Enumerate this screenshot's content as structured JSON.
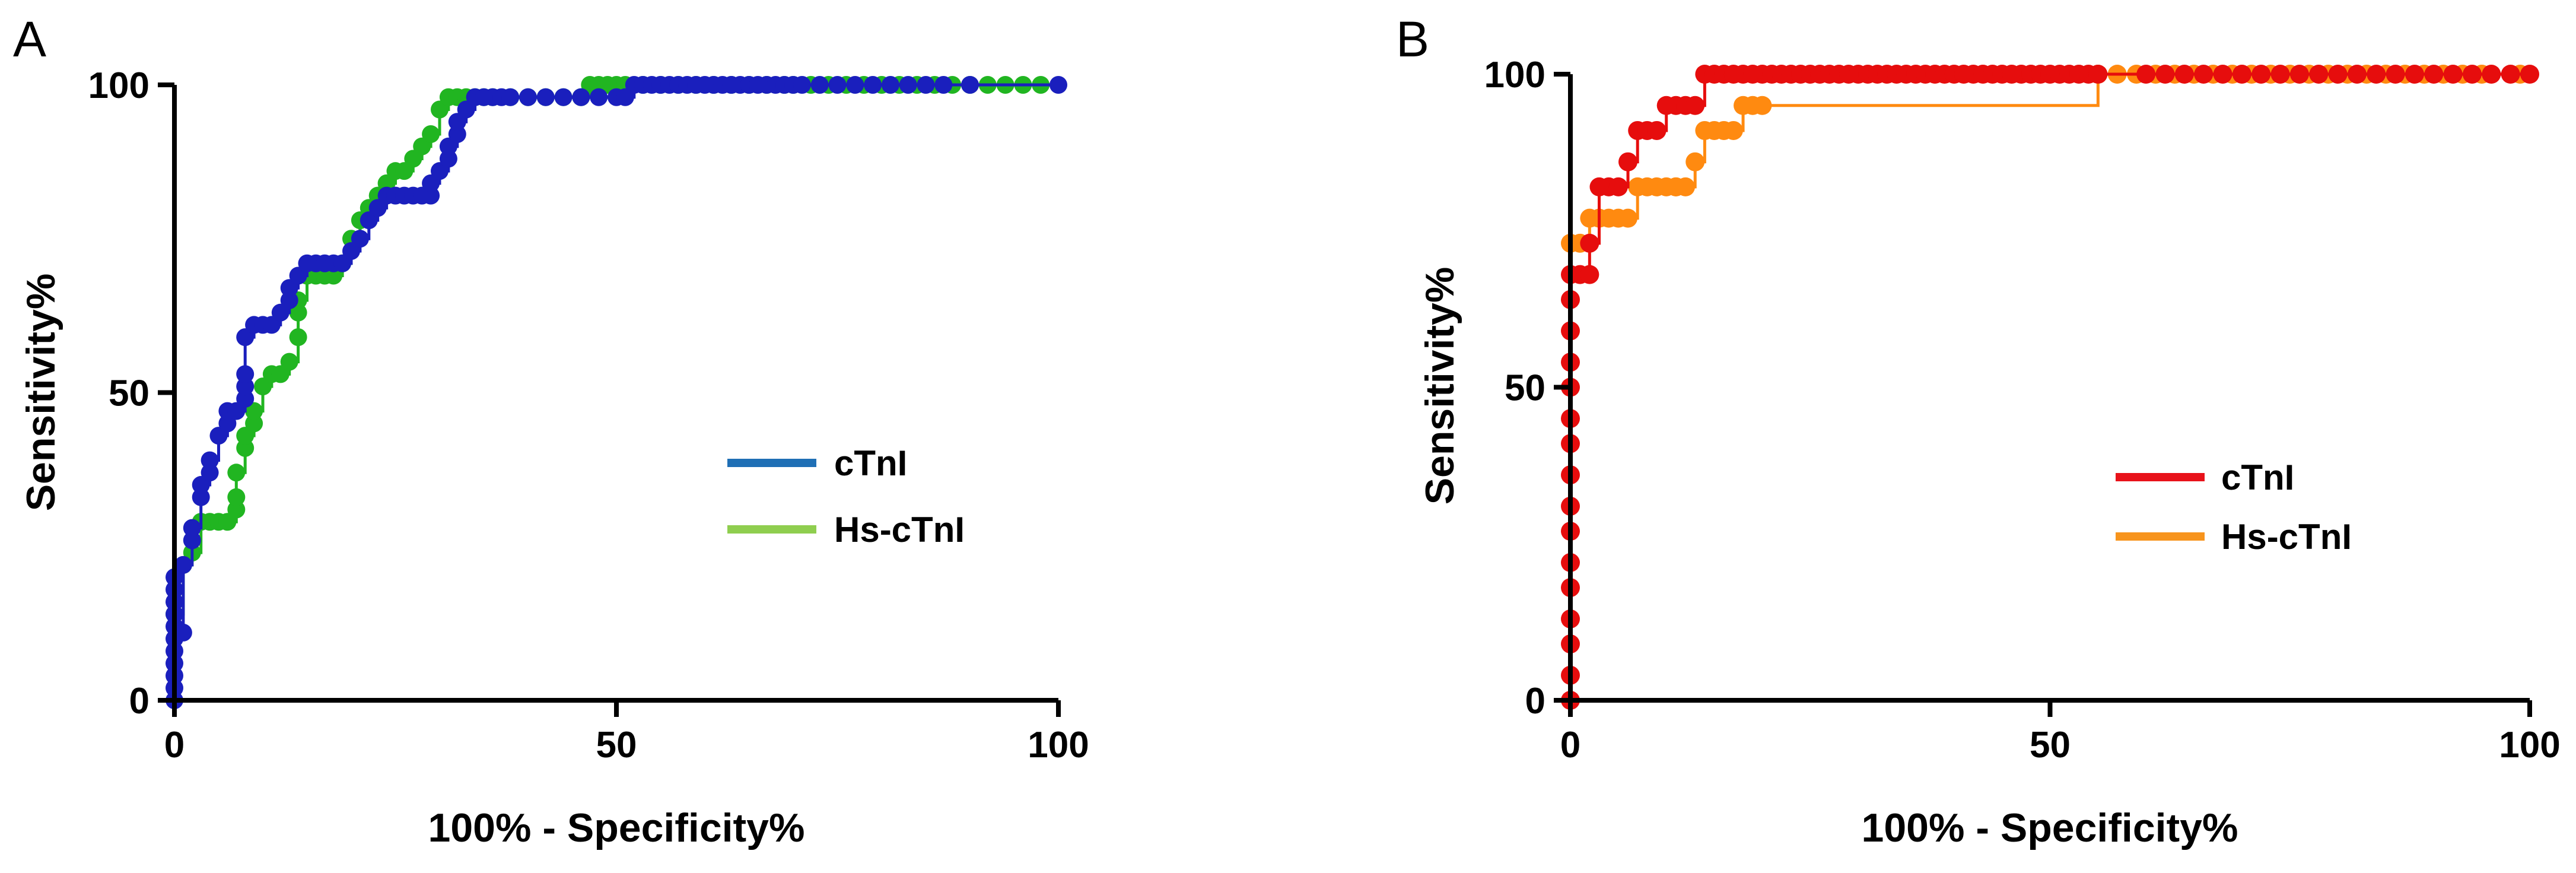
{
  "chart_data": [
    {
      "panel": "A",
      "type": "line",
      "title": "",
      "xlabel": "100% - Specificity%",
      "ylabel": "Sensitivity%",
      "xlim": [
        0,
        100
      ],
      "ylim": [
        0,
        100
      ],
      "xticks": [
        0,
        50,
        100
      ],
      "yticks": [
        0,
        50,
        100
      ],
      "grid": false,
      "legend_position": "right",
      "series": [
        {
          "name": "cTnI",
          "color": "#1a1fbd",
          "legend_color": "#1f6fb5",
          "x": [
            0,
            0,
            0,
            0,
            0,
            0,
            0,
            0,
            0,
            0,
            0,
            1,
            1,
            2,
            2,
            3,
            3,
            4,
            4,
            5,
            6,
            6,
            7,
            8,
            8,
            8,
            8,
            9,
            10,
            11,
            12,
            13,
            13,
            14,
            15,
            16,
            17,
            18,
            19,
            20,
            21,
            22,
            23,
            24,
            25,
            26,
            27,
            28,
            29,
            29,
            30,
            31,
            31,
            32,
            32,
            33,
            34,
            35,
            36,
            37,
            38,
            40,
            42,
            44,
            46,
            48,
            50,
            51,
            52,
            53,
            54,
            55,
            56,
            57,
            58,
            59,
            60,
            61,
            62,
            63,
            64,
            65,
            66,
            67,
            68,
            69,
            70,
            71,
            73,
            75,
            77,
            79,
            81,
            83,
            85,
            87,
            90,
            100
          ],
          "y": [
            0,
            2,
            4,
            6,
            8,
            10,
            12,
            14,
            16,
            18,
            20,
            11,
            22,
            26,
            28,
            33,
            35,
            37,
            39,
            43,
            45,
            47,
            47,
            49,
            51,
            53,
            59,
            61,
            61,
            61,
            63,
            65,
            67,
            69,
            71,
            71,
            71,
            71,
            71,
            73,
            75,
            78,
            80,
            82,
            82,
            82,
            82,
            82,
            82,
            84,
            86,
            88,
            90,
            92,
            94,
            96,
            98,
            98,
            98,
            98,
            98,
            98,
            98,
            98,
            98,
            98,
            98,
            98,
            100,
            100,
            100,
            100,
            100,
            100,
            100,
            100,
            100,
            100,
            100,
            100,
            100,
            100,
            100,
            100,
            100,
            100,
            100,
            100,
            100,
            100,
            100,
            100,
            100,
            100,
            100,
            100,
            100,
            100
          ]
        },
        {
          "name": "Hs-cTnI",
          "color": "#21b521",
          "legend_color": "#8fce4f",
          "x": [
            0,
            1,
            2,
            3,
            4,
            5,
            6,
            7,
            7,
            7,
            8,
            8,
            9,
            9,
            10,
            11,
            12,
            13,
            14,
            14,
            14,
            15,
            16,
            17,
            18,
            19,
            20,
            21,
            22,
            23,
            24,
            25,
            26,
            27,
            28,
            29,
            30,
            31,
            32,
            33,
            34,
            35,
            36,
            38,
            40,
            42,
            44,
            46,
            47,
            48,
            49,
            50,
            51,
            53,
            55,
            57,
            59,
            61,
            63,
            65,
            67,
            69,
            70,
            72,
            74,
            76,
            78,
            80,
            82,
            84,
            86,
            88,
            90,
            92,
            94,
            96,
            98
          ],
          "y": [
            14,
            22,
            24,
            29,
            29,
            29,
            29,
            31,
            33,
            37,
            41,
            43,
            45,
            47,
            51,
            53,
            53,
            55,
            59,
            63,
            65,
            69,
            69,
            69,
            69,
            71,
            75,
            78,
            80,
            82,
            84,
            86,
            86,
            88,
            90,
            92,
            96,
            98,
            98,
            98,
            98,
            98,
            98,
            98,
            98,
            98,
            98,
            98,
            100,
            100,
            100,
            100,
            100,
            100,
            100,
            100,
            100,
            100,
            100,
            100,
            100,
            100,
            100,
            100,
            100,
            100,
            100,
            100,
            100,
            100,
            100,
            100,
            100,
            100,
            100,
            100,
            100
          ]
        }
      ]
    },
    {
      "panel": "B",
      "type": "line",
      "title": "",
      "xlabel": "100% - Specificity%",
      "ylabel": "Sensitivity%",
      "xlim": [
        0,
        100
      ],
      "ylim": [
        0,
        100
      ],
      "xticks": [
        0,
        50,
        100
      ],
      "yticks": [
        0,
        50,
        100
      ],
      "grid": false,
      "legend_position": "right",
      "series": [
        {
          "name": "cTnI",
          "color": "#e60d0d",
          "legend_color": "#e8121a",
          "x": [
            0,
            0,
            0,
            0,
            0,
            0,
            0,
            0,
            0,
            0,
            0,
            0,
            0,
            0,
            0,
            0,
            1,
            2,
            2,
            3,
            4,
            5,
            6,
            7,
            8,
            9,
            10,
            11,
            12,
            13,
            14,
            15,
            16,
            17,
            18,
            19,
            20,
            21,
            22,
            23,
            24,
            25,
            26,
            27,
            28,
            29,
            30,
            31,
            32,
            33,
            34,
            35,
            36,
            37,
            38,
            39,
            40,
            41,
            42,
            43,
            44,
            45,
            46,
            47,
            48,
            49,
            50,
            51,
            52,
            53,
            54,
            55,
            60,
            62,
            64,
            66,
            68,
            70,
            72,
            74,
            76,
            78,
            80,
            82,
            84,
            86,
            88,
            90,
            92,
            94,
            96,
            98,
            100
          ],
          "y": [
            0,
            4,
            9,
            13,
            18,
            22,
            27,
            31,
            36,
            41,
            45,
            50,
            54,
            59,
            64,
            68,
            68,
            68,
            73,
            82,
            82,
            82,
            86,
            91,
            91,
            91,
            95,
            95,
            95,
            95,
            100,
            100,
            100,
            100,
            100,
            100,
            100,
            100,
            100,
            100,
            100,
            100,
            100,
            100,
            100,
            100,
            100,
            100,
            100,
            100,
            100,
            100,
            100,
            100,
            100,
            100,
            100,
            100,
            100,
            100,
            100,
            100,
            100,
            100,
            100,
            100,
            100,
            100,
            100,
            100,
            100,
            100,
            100,
            100,
            100,
            100,
            100,
            100,
            100,
            100,
            100,
            100,
            100,
            100,
            100,
            100,
            100,
            100,
            100,
            100,
            100,
            100,
            100
          ]
        },
        {
          "name": "Hs-cTnI",
          "color": "#ff8a10",
          "legend_color": "#f7941d",
          "x": [
            0,
            1,
            2,
            3,
            4,
            5,
            6,
            7,
            8,
            9,
            10,
            11,
            11,
            12,
            13,
            14,
            15,
            16,
            17,
            18,
            19,
            20,
            55,
            57,
            59,
            61,
            63,
            65,
            67,
            69,
            71,
            73,
            75,
            77,
            79,
            81,
            83,
            85,
            87,
            89,
            91,
            93,
            95,
            99
          ],
          "y": [
            73,
            73,
            77,
            77,
            77,
            77,
            77,
            82,
            82,
            82,
            82,
            82,
            82,
            82,
            86,
            91,
            91,
            91,
            91,
            95,
            95,
            95,
            100,
            100,
            100,
            100,
            100,
            100,
            100,
            100,
            100,
            100,
            100,
            100,
            100,
            100,
            100,
            100,
            100,
            100,
            100,
            100,
            100,
            100
          ]
        }
      ]
    }
  ]
}
